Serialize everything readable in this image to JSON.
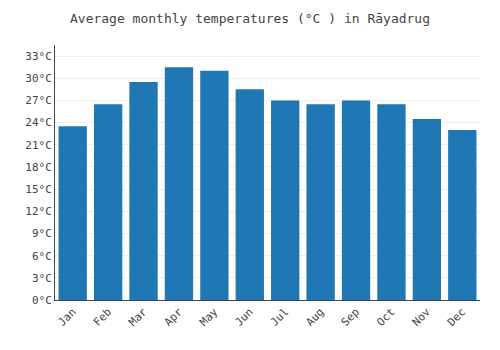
{
  "chart_data": {
    "type": "bar",
    "title": "Average monthly temperatures (°C ) in Rāyadrug",
    "categories": [
      "Jan",
      "Feb",
      "Mar",
      "Apr",
      "May",
      "Jun",
      "Jul",
      "Aug",
      "Sep",
      "Oct",
      "Nov",
      "Dec"
    ],
    "values": [
      23.5,
      26.5,
      29.5,
      31.5,
      31.0,
      28.5,
      27.0,
      26.5,
      27.0,
      26.5,
      24.5,
      23.0
    ],
    "ylim": [
      0,
      34.5
    ],
    "yticks": [
      {
        "value": 0,
        "label": "0°C"
      },
      {
        "value": 3,
        "label": "3°C"
      },
      {
        "value": 6,
        "label": "6°C"
      },
      {
        "value": 9,
        "label": "9°C"
      },
      {
        "value": 12,
        "label": "12°C"
      },
      {
        "value": 15,
        "label": "15°C"
      },
      {
        "value": 18,
        "label": "18°C"
      },
      {
        "value": 21,
        "label": "21°C"
      },
      {
        "value": 24,
        "label": "24°C"
      },
      {
        "value": 27,
        "label": "27°C"
      },
      {
        "value": 30,
        "label": "30°C"
      },
      {
        "value": 33,
        "label": "33°C"
      }
    ],
    "grid": true
  }
}
